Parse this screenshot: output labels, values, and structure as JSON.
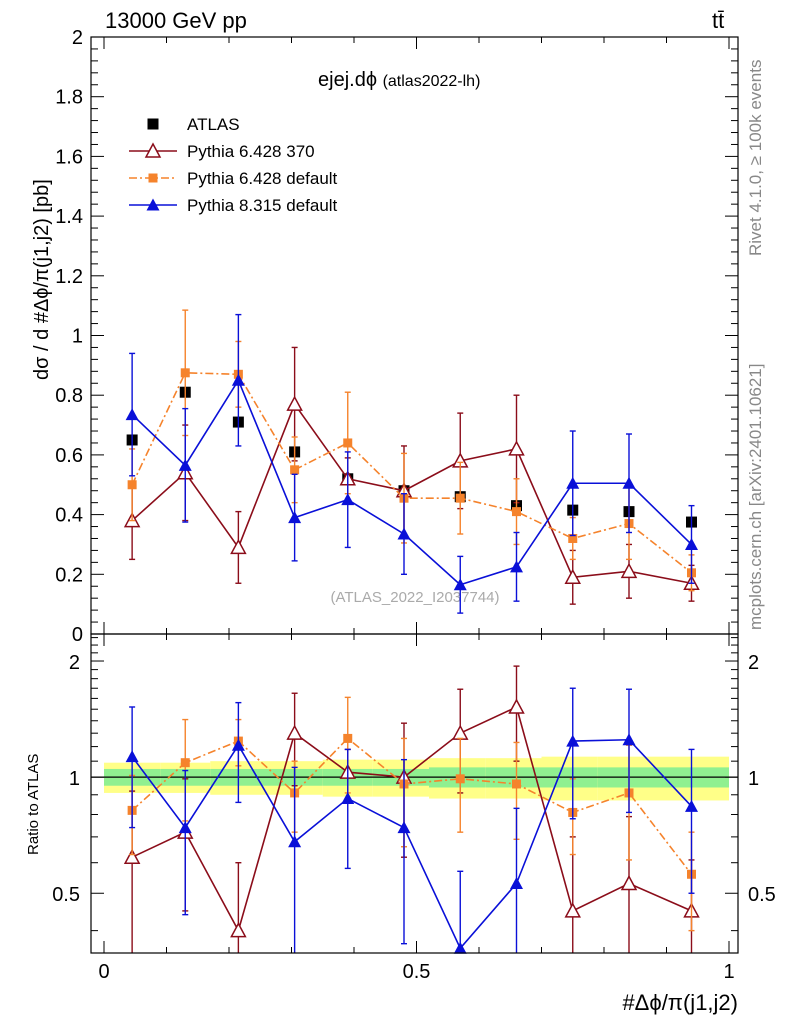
{
  "header": {
    "energy_label": "13000 GeV pp",
    "process_label": "tt̄",
    "plot_title": "ejej.dϕ",
    "analysis_tag": "(atlas2022-lh)",
    "watermark": "(ATLAS_2022_I2037744)",
    "side_rivet": "Rivet 4.1.0, ≥ 100k events",
    "side_mcplots": "mcplots.cern.ch [arXiv:2401.10621]"
  },
  "chart_data": [
    {
      "type": "line",
      "panel": "main",
      "ylabel": "dσ / d #Δϕ/π(j1,j2) [pb]",
      "xlabel": "#Δϕ/π(j1,j2)",
      "xlim": [
        0,
        1
      ],
      "ylim": [
        0,
        2
      ],
      "yticks": [
        "0",
        "0.2",
        "0.4",
        "0.6",
        "0.8",
        "1",
        "1.2",
        "1.4",
        "1.6",
        "1.8",
        "2"
      ],
      "ytick_values": [
        0,
        0.2,
        0.4,
        0.6,
        0.8,
        1,
        1.2,
        1.4,
        1.6,
        1.8,
        2
      ],
      "legend_position": "top-left",
      "x": [
        0.045,
        0.13,
        0.215,
        0.305,
        0.39,
        0.48,
        0.57,
        0.66,
        0.75,
        0.84,
        0.94
      ],
      "series": [
        {
          "name": "ATLAS",
          "color": "#000000",
          "marker": "square",
          "values": [
            0.65,
            0.81,
            0.71,
            0.61,
            0.52,
            0.48,
            0.46,
            0.43,
            0.415,
            0.41,
            0.375
          ],
          "errors": [
            0,
            0,
            0,
            0,
            0,
            0,
            0,
            0,
            0,
            0,
            0
          ]
        },
        {
          "name": "Pythia 6.428 370",
          "color": "#8b0d1a",
          "marker": "open-triangle",
          "dash": "solid",
          "values": [
            0.38,
            0.54,
            0.29,
            0.77,
            0.52,
            0.48,
            0.58,
            0.62,
            0.19,
            0.21,
            0.17
          ],
          "errors": [
            0.13,
            0.16,
            0.12,
            0.19,
            0.07,
            0.15,
            0.16,
            0.18,
            0.09,
            0.09,
            0.06
          ]
        },
        {
          "name": "Pythia 6.428 default",
          "color": "#f5832c",
          "marker": "filled-square",
          "dash": "dashdot",
          "values": [
            0.5,
            0.875,
            0.87,
            0.55,
            0.64,
            0.455,
            0.455,
            0.41,
            0.32,
            0.37,
            0.205
          ],
          "errors": [
            0.12,
            0.21,
            0.11,
            0.11,
            0.17,
            0.15,
            0.12,
            0.11,
            0.07,
            0.12,
            0.06
          ]
        },
        {
          "name": "Pythia 8.315 default",
          "color": "#0a10d8",
          "marker": "filled-triangle",
          "dash": "solid",
          "values": [
            0.735,
            0.565,
            0.85,
            0.39,
            0.45,
            0.335,
            0.165,
            0.225,
            0.505,
            0.505,
            0.3
          ],
          "errors": [
            0.205,
            0.19,
            0.22,
            0.145,
            0.16,
            0.135,
            0.095,
            0.115,
            0.175,
            0.165,
            0.13
          ]
        }
      ]
    },
    {
      "type": "line",
      "panel": "ratio",
      "ylabel": "Ratio to ATLAS",
      "xlabel": "#Δϕ/π(j1,j2)",
      "xlim": [
        0,
        1
      ],
      "ylim": [
        0.35,
        2.35
      ],
      "xticks": [
        "0",
        "0.5",
        "1"
      ],
      "xtick_values": [
        0,
        0.5,
        1
      ],
      "yticks": [
        "0.5",
        "1",
        "2"
      ],
      "ytick_values": [
        0.5,
        1,
        2
      ],
      "reference_line": 1,
      "bands": {
        "edges": [
          0,
          0.09,
          0.17,
          0.26,
          0.35,
          0.43,
          0.52,
          0.61,
          0.7,
          0.79,
          0.88,
          1.0
        ],
        "inner_fill": "#90f090",
        "outer_fill": "#ffff88",
        "inner_half_width": [
          0.05,
          0.05,
          0.05,
          0.05,
          0.05,
          0.05,
          0.06,
          0.06,
          0.06,
          0.06,
          0.06
        ],
        "outer_half_width": [
          0.09,
          0.09,
          0.1,
          0.1,
          0.11,
          0.11,
          0.12,
          0.12,
          0.13,
          0.13,
          0.13
        ]
      },
      "x": [
        0.045,
        0.13,
        0.215,
        0.305,
        0.39,
        0.48,
        0.57,
        0.66,
        0.75,
        0.84,
        0.94
      ],
      "series": [
        {
          "name": "ATLAS",
          "color": "#000000",
          "values": [
            1,
            1,
            1,
            1,
            1,
            1,
            1,
            1,
            1,
            1,
            1
          ]
        },
        {
          "name": "Pythia 6.428 370",
          "color": "#8b0d1a",
          "marker": "open-triangle",
          "dash": "solid",
          "values": [
            0.62,
            0.72,
            0.4,
            1.3,
            1.03,
            1.0,
            1.3,
            1.52,
            0.45,
            0.53,
            0.45
          ],
          "errors": [
            0.3,
            0.27,
            0.2,
            0.35,
            0.15,
            0.38,
            0.39,
            0.42,
            0.25,
            0.26,
            0.16
          ]
        },
        {
          "name": "Pythia 6.428 default",
          "color": "#f5832c",
          "marker": "filled-square",
          "dash": "dashdot",
          "values": [
            0.82,
            1.09,
            1.24,
            0.91,
            1.26,
            0.96,
            0.99,
            0.96,
            0.81,
            0.91,
            0.56
          ],
          "errors": [
            0.19,
            0.32,
            0.17,
            0.19,
            0.35,
            0.3,
            0.27,
            0.27,
            0.18,
            0.3,
            0.16
          ]
        },
        {
          "name": "Pythia 8.315 default",
          "color": "#0a10d8",
          "marker": "filled-triangle",
          "dash": "solid",
          "values": [
            1.13,
            0.74,
            1.21,
            0.68,
            0.88,
            0.74,
            0.36,
            0.53,
            1.24,
            1.25,
            0.84
          ],
          "errors": [
            0.39,
            0.3,
            0.35,
            0.38,
            0.3,
            0.37,
            0.21,
            0.3,
            0.46,
            0.44,
            0.34
          ]
        }
      ]
    }
  ]
}
